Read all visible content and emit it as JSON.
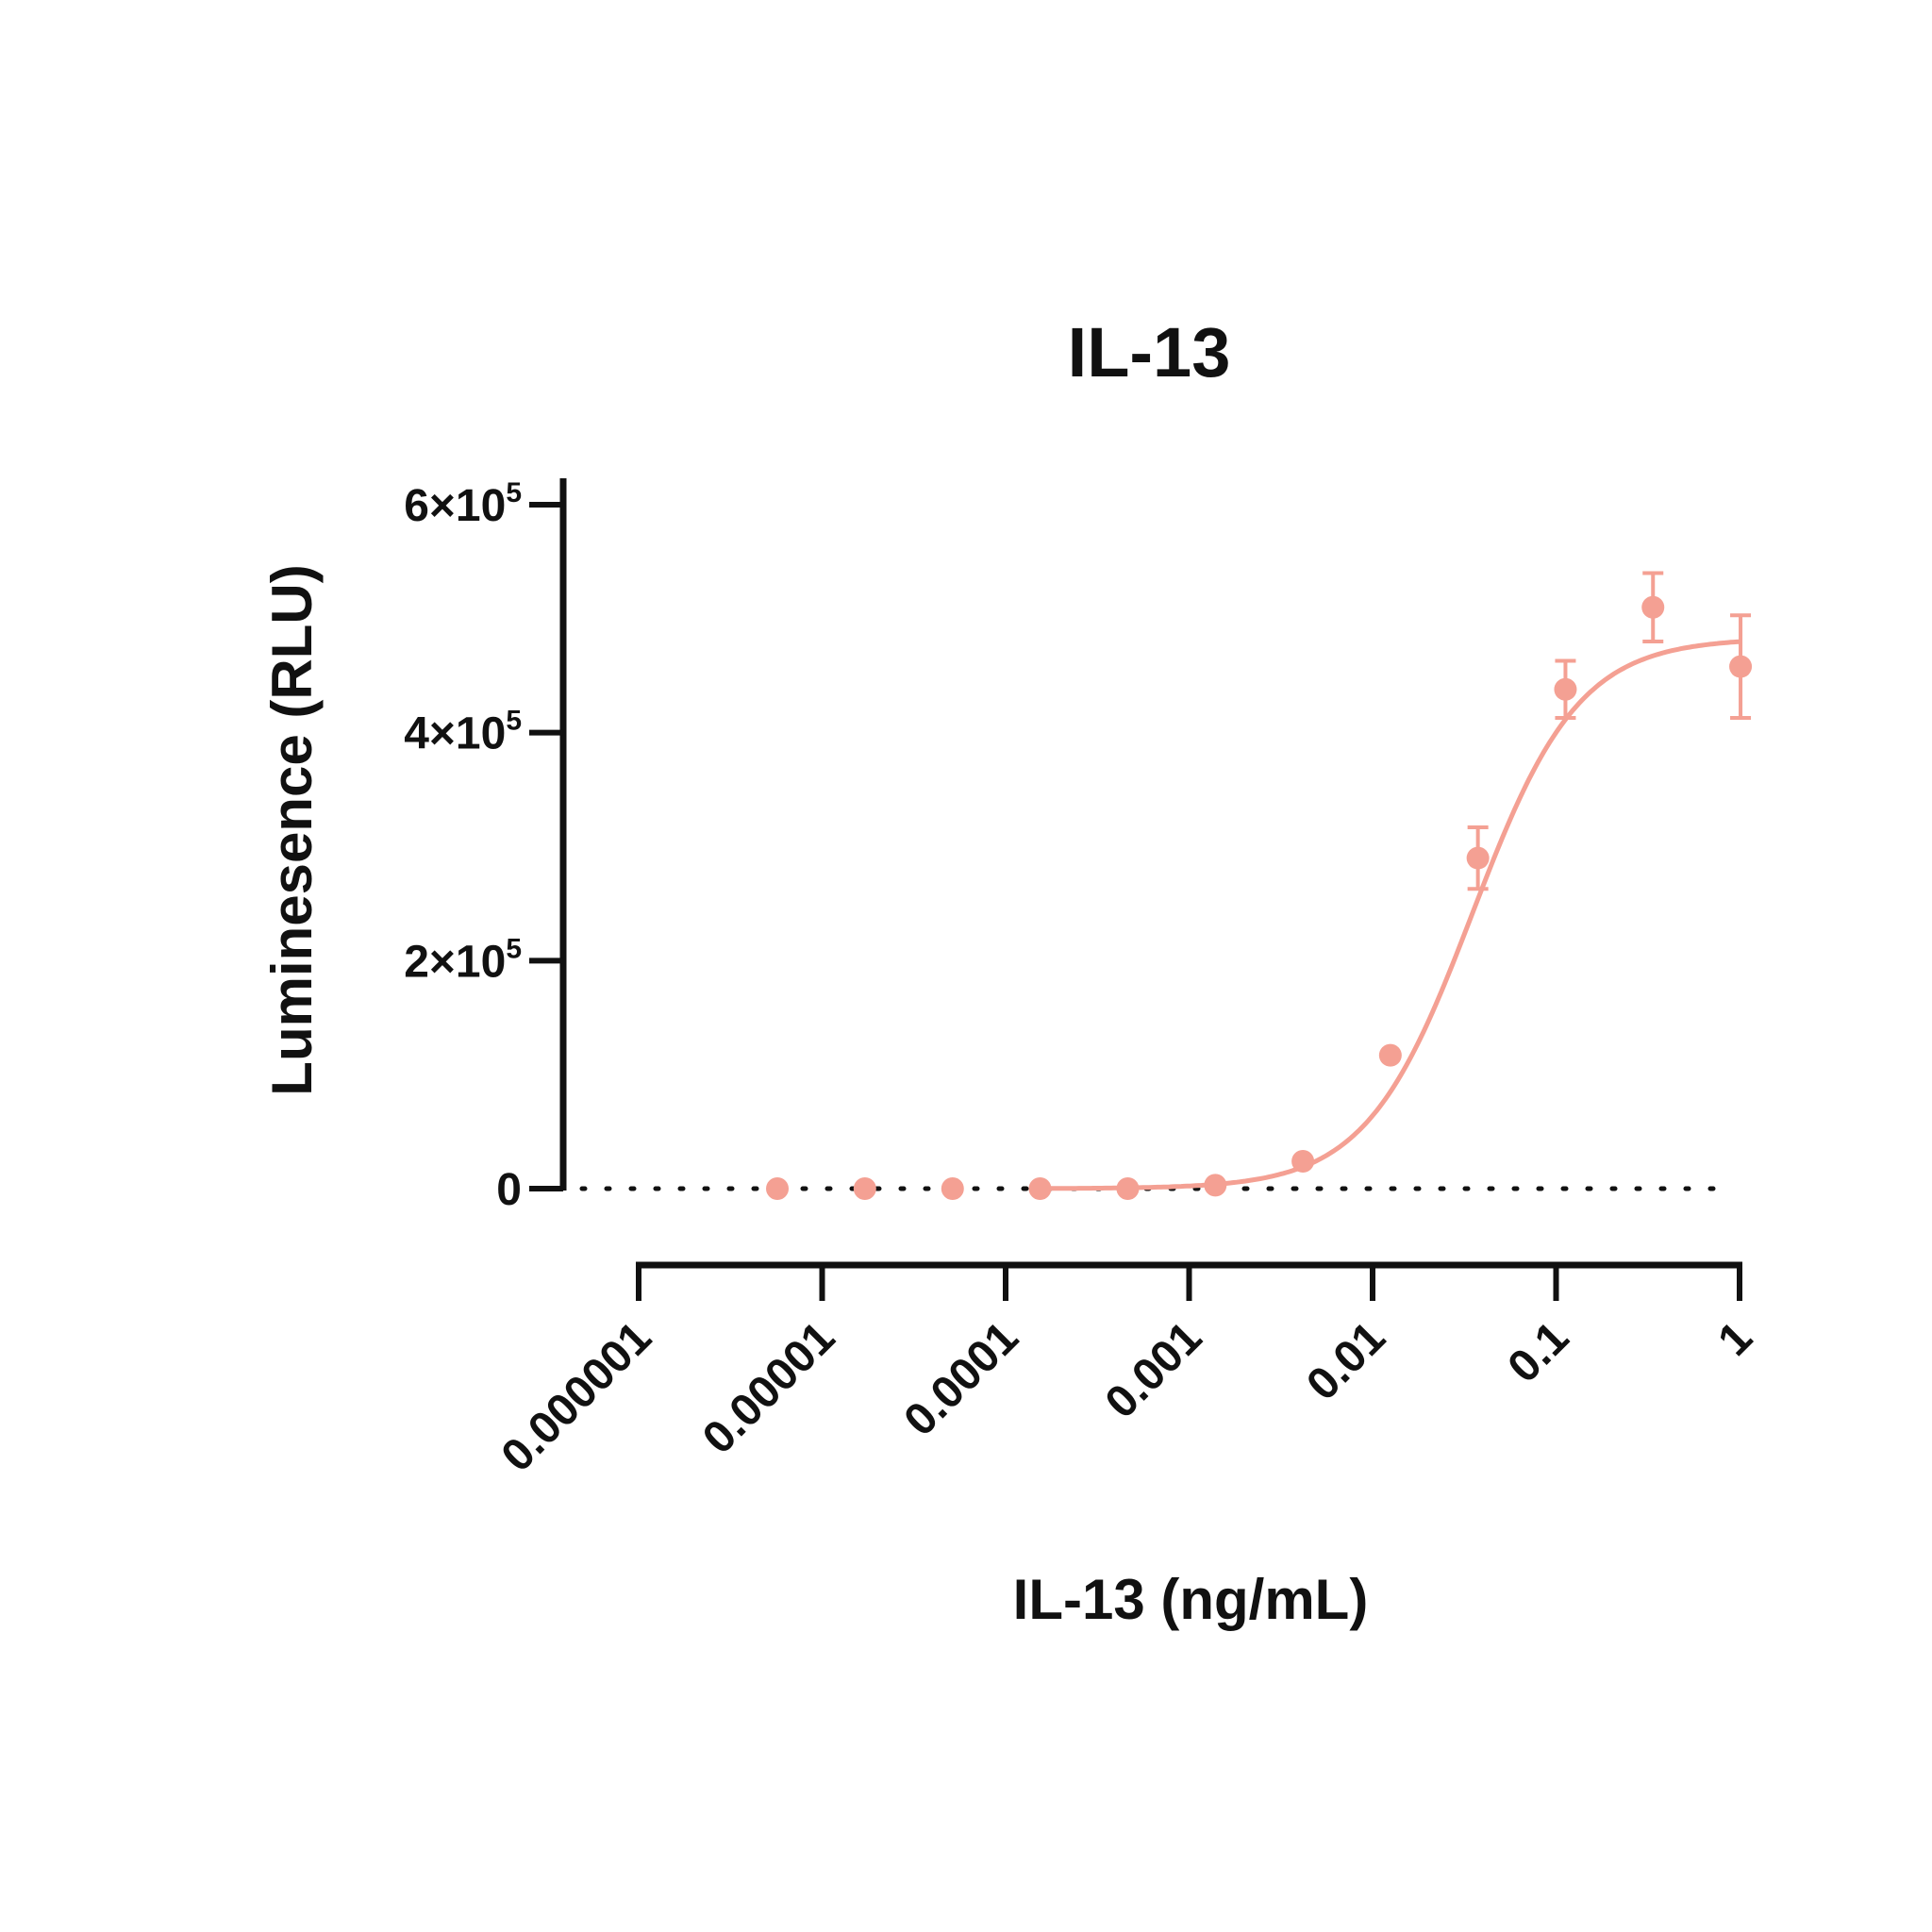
{
  "chart_data": {
    "type": "scatter",
    "title": "IL-13",
    "xlabel": "IL-13 (ng/mL)",
    "ylabel": "Luminesence (RLU)",
    "x_scale": "log",
    "xlim": [
      1e-06,
      1
    ],
    "ylim": [
      0,
      600000
    ],
    "x_ticks": [
      {
        "value": 1e-06,
        "label": "0.000001"
      },
      {
        "value": 1e-05,
        "label": "0.00001"
      },
      {
        "value": 0.0001,
        "label": "0.0001"
      },
      {
        "value": 0.001,
        "label": "0.001"
      },
      {
        "value": 0.01,
        "label": "0.01"
      },
      {
        "value": 0.1,
        "label": "0.1"
      },
      {
        "value": 1,
        "label": "1"
      }
    ],
    "y_ticks": [
      {
        "value": 0,
        "base": "0",
        "exp": ""
      },
      {
        "value": 200000,
        "base": "2×10",
        "exp": "5"
      },
      {
        "value": 400000,
        "base": "4×10",
        "exp": "5"
      },
      {
        "value": 600000,
        "base": "6×10",
        "exp": "5"
      }
    ],
    "baseline": {
      "y": 0,
      "style": "dotted",
      "x_range": [
        1e-06,
        1
      ]
    },
    "color": "#f4a093",
    "series": [
      {
        "points": [
          {
            "x": 5.7e-06,
            "y": 0,
            "err": 0
          },
          {
            "x": 1.71e-05,
            "y": 0,
            "err": 0
          },
          {
            "x": 5.14e-05,
            "y": 0,
            "err": 0
          },
          {
            "x": 0.000154,
            "y": 0,
            "err": 0
          },
          {
            "x": 0.000463,
            "y": 0,
            "err": 0
          },
          {
            "x": 0.00139,
            "y": 3000,
            "err": 0
          },
          {
            "x": 0.00417,
            "y": 24000,
            "err": 0
          },
          {
            "x": 0.0125,
            "y": 117000,
            "err": 0
          },
          {
            "x": 0.0375,
            "y": 290000,
            "err": 27000
          },
          {
            "x": 0.1125,
            "y": 438000,
            "err": 25000
          },
          {
            "x": 0.3375,
            "y": 510000,
            "err": 30000
          },
          {
            "x": 1.0125,
            "y": 458000,
            "err": 45000
          }
        ],
        "fit": {
          "model": "four-parameter logistic",
          "bottom": 0,
          "top": 483000,
          "ec50": 0.035,
          "hill": 1.5,
          "x_start": 0.00015,
          "x_end": 1
        }
      }
    ]
  }
}
